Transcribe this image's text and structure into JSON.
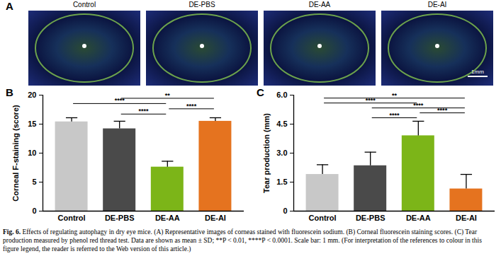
{
  "panel_a": {
    "label": "A",
    "images": [
      "Control",
      "DE-PBS",
      "DE-AA",
      "DE-AI"
    ],
    "scale_bar": "1mm"
  },
  "chart_data": [
    {
      "type": "bar",
      "panel": "B",
      "ylabel": "Corneal F-staining (score)",
      "categories": [
        "Control",
        "DE-PBS",
        "DE-AA",
        "DE-AI"
      ],
      "values": [
        15.4,
        14.2,
        7.6,
        15.5
      ],
      "errors": [
        0.7,
        1.3,
        1.0,
        0.6
      ],
      "colors": [
        "#c8c8c8",
        "#4a4a4a",
        "#7cb518",
        "#e5731f"
      ],
      "ylim": [
        0,
        20
      ],
      "yticks": [
        0,
        5,
        10,
        15,
        20
      ],
      "comparisons": [
        {
          "from": "DE-PBS",
          "to": "DE-AA",
          "label": "****"
        },
        {
          "from": "DE-AA",
          "to": "DE-AI",
          "label": "****"
        },
        {
          "from": "Control",
          "to": "DE-AA",
          "label": "****"
        },
        {
          "from": "DE-PBS",
          "to": "DE-AI",
          "label": "**"
        }
      ]
    },
    {
      "type": "bar",
      "panel": "C",
      "ylabel": "Tear production (mm)",
      "categories": [
        "Control",
        "DE-PBS",
        "DE-AA",
        "DE-AI"
      ],
      "values": [
        1.9,
        2.35,
        3.9,
        1.15
      ],
      "errors": [
        0.5,
        0.7,
        0.75,
        0.75
      ],
      "colors": [
        "#c8c8c8",
        "#4a4a4a",
        "#7cb518",
        "#e5731f"
      ],
      "ylim": [
        0,
        6
      ],
      "yticks": [
        0,
        1.5,
        {
          "value": 3,
          "label": "3.0"
        },
        4.5,
        {
          "value": 6,
          "label": "6.0"
        }
      ],
      "comparisons": [
        {
          "from": "DE-PBS",
          "to": "DE-AA",
          "label": "****"
        },
        {
          "from": "DE-AA",
          "to": "DE-AI",
          "label": "****"
        },
        {
          "from": "DE-PBS",
          "to": "DE-AI",
          "label": "****"
        },
        {
          "from": "Control",
          "to": "DE-AA",
          "label": "****"
        },
        {
          "from": "Control",
          "to": "DE-AI",
          "label": "**"
        }
      ]
    }
  ],
  "caption": {
    "label": "Fig. 6.",
    "text": "Effects of regulating autophagy in dry eye mice. (A) Representative images of corneas stained with fluorescein sodium. (B) Corneal fluorescein staining scores. (C) Tear production measured by phenol red thread test. Data are shown as mean ± SD; **P < 0.01, ****P < 0.0001. Scale bar: 1 mm. (For interpretation of the references to colour in this figure legend, the reader is referred to the Web version of this article.)"
  }
}
